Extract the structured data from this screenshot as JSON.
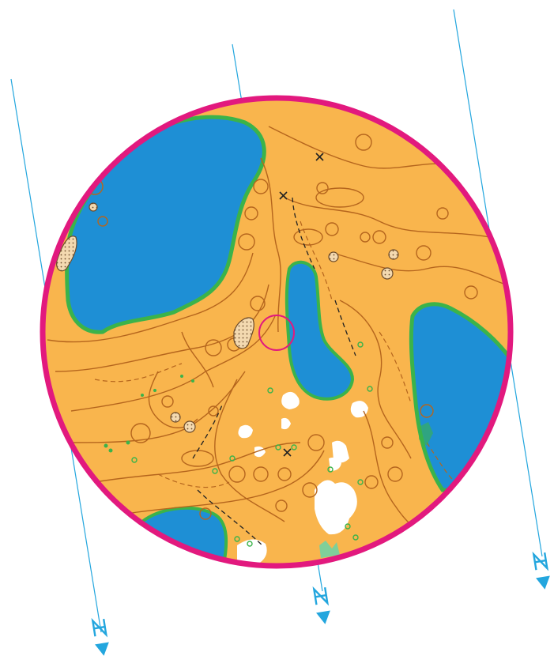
{
  "map": {
    "colors": {
      "open_land": "#f9b54d",
      "water": "#1e8fd5",
      "green_vegetation": "#3bb34a",
      "contour": "#b5651d",
      "control_circle": "#e2197e",
      "north_line": "#23a6de",
      "white_forest": "#ffffff",
      "symbol_black": "#222222"
    },
    "north_arrow": {
      "label": "N",
      "count": 3
    },
    "control": {
      "symbol": "circle"
    }
  }
}
